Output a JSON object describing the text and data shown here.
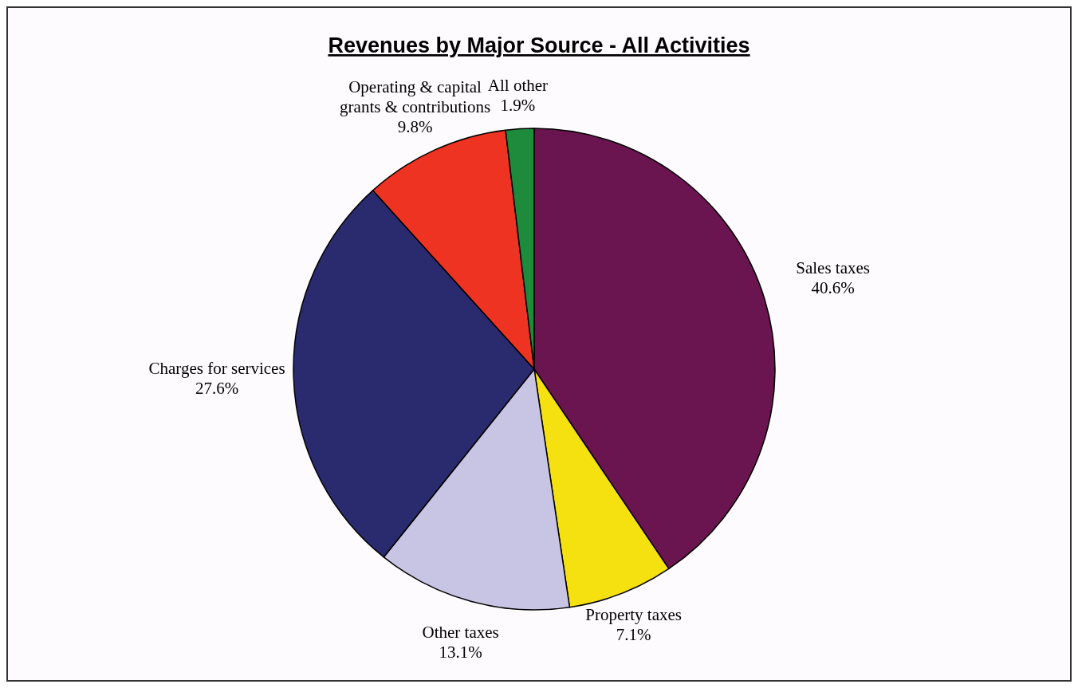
{
  "chart_data": {
    "type": "pie",
    "title": "Revenues by Major Source - All Activities",
    "categories": [
      "Sales taxes",
      "Property taxes",
      "Other taxes",
      "Charges for services",
      "Operating & capital grants & contributions",
      "All other"
    ],
    "values": [
      40.6,
      7.1,
      13.1,
      27.6,
      9.8,
      1.9
    ],
    "colors": [
      "#6b1550",
      "#f5e010",
      "#c8c4e4",
      "#2a2a6e",
      "#ee3322",
      "#1e8a3c"
    ],
    "value_labels": [
      "40.6%",
      "7.1%",
      "13.1%",
      "27.6%",
      "9.8%",
      "1.9%"
    ]
  }
}
